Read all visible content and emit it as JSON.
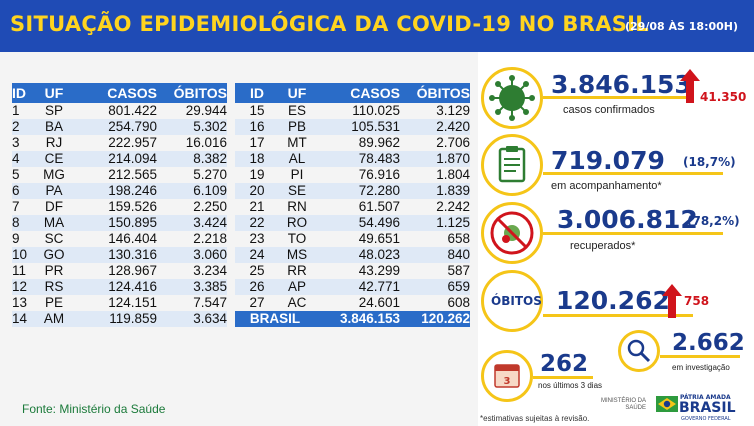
{
  "header": {
    "title": "SITUAÇÃO EPIDEMIOLÓGICA DA COVID-19 NO BRASIL",
    "date": "(29/08 ÀS 18:00H)"
  },
  "table": {
    "columns": [
      "ID",
      "UF",
      "CASOS",
      "ÓBITOS"
    ],
    "left_rows": [
      [
        "1",
        "SP",
        "801.422",
        "29.944"
      ],
      [
        "2",
        "BA",
        "254.790",
        "5.302"
      ],
      [
        "3",
        "RJ",
        "222.957",
        "16.016"
      ],
      [
        "4",
        "CE",
        "214.094",
        "8.382"
      ],
      [
        "5",
        "MG",
        "212.565",
        "5.270"
      ],
      [
        "6",
        "PA",
        "198.246",
        "6.109"
      ],
      [
        "7",
        "DF",
        "159.526",
        "2.250"
      ],
      [
        "8",
        "MA",
        "150.895",
        "3.424"
      ],
      [
        "9",
        "SC",
        "146.404",
        "2.218"
      ],
      [
        "10",
        "GO",
        "130.316",
        "3.060"
      ],
      [
        "11",
        "PR",
        "128.967",
        "3.234"
      ],
      [
        "12",
        "RS",
        "124.416",
        "3.385"
      ],
      [
        "13",
        "PE",
        "124.151",
        "7.547"
      ],
      [
        "14",
        "AM",
        "119.859",
        "3.634"
      ]
    ],
    "right_rows": [
      [
        "15",
        "ES",
        "110.025",
        "3.129"
      ],
      [
        "16",
        "PB",
        "105.531",
        "2.420"
      ],
      [
        "17",
        "MT",
        "89.962",
        "2.706"
      ],
      [
        "18",
        "AL",
        "78.483",
        "1.870"
      ],
      [
        "19",
        "PI",
        "76.916",
        "1.804"
      ],
      [
        "20",
        "SE",
        "72.280",
        "1.839"
      ],
      [
        "21",
        "RN",
        "61.507",
        "2.242"
      ],
      [
        "22",
        "RO",
        "54.496",
        "1.125"
      ],
      [
        "23",
        "TO",
        "49.651",
        "658"
      ],
      [
        "24",
        "MS",
        "48.023",
        "840"
      ],
      [
        "25",
        "RR",
        "43.299",
        "587"
      ],
      [
        "26",
        "AP",
        "42.771",
        "659"
      ],
      [
        "27",
        "AC",
        "24.601",
        "608"
      ]
    ],
    "total": {
      "label": "BRASIL",
      "casos": "3.846.153",
      "obitos": "120.262"
    }
  },
  "source": "Fonte: Ministério da Saúde",
  "stats": {
    "confirmed": {
      "value": "3.846.153",
      "label": "casos confirmados",
      "increase": "41.350"
    },
    "monitoring": {
      "value": "719.079",
      "percent": "(18,7%)",
      "label": "em acompanhamento*"
    },
    "recovered": {
      "value": "3.006.812",
      "percent": "(78,2%)",
      "label": "recuperados*"
    },
    "deaths": {
      "tag": "ÓBITOS",
      "value": "120.262",
      "increase": "758"
    },
    "recent_deaths": {
      "value": "262",
      "label": "nos últimos 3 dias",
      "calendar_number": "3"
    },
    "investigation": {
      "value": "2.662",
      "label": "em investigação"
    }
  },
  "footnote": "*estimativas sujeitas à revisão.",
  "branding": {
    "ministry_line1": "MINISTÉRIO DA",
    "ministry_line2": "SAÚDE",
    "gov_top": "PÁTRIA AMADA",
    "gov_main": "BRASIL",
    "gov_sub": "GOVERNO FEDERAL"
  },
  "colors": {
    "banner": "#1f4bb5",
    "title": "#ffd41f",
    "accent_yellow": "#f5c518",
    "number_blue": "#1a3a8c",
    "increase_red": "#d0141c",
    "table_header": "#2a6cc8"
  },
  "icons": [
    "virus-icon",
    "clipboard-icon",
    "no-virus-icon",
    "calendar-icon",
    "magnifier-icon",
    "up-arrow-icon"
  ]
}
